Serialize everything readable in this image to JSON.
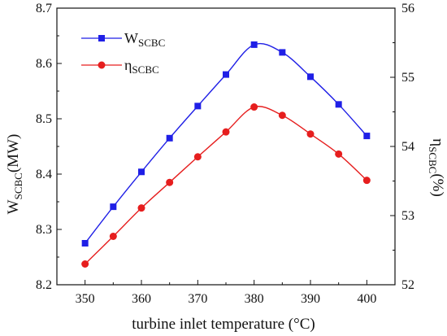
{
  "chart_data": {
    "type": "line",
    "x": [
      350,
      355,
      360,
      365,
      370,
      375,
      380,
      385,
      390,
      395,
      400
    ],
    "xlabel": "turbine inlet temperature (°C)",
    "xlim": [
      345,
      405
    ],
    "xticks": [
      "350",
      "360",
      "370",
      "380",
      "390",
      "400"
    ],
    "grid": false,
    "legend_position": "top-left",
    "series": [
      {
        "name": "W",
        "name_sub": "SCBC",
        "axis": "left",
        "marker": "square",
        "color": "#1f1fe6",
        "values": [
          8.275,
          8.341,
          8.404,
          8.465,
          8.523,
          8.58,
          8.634,
          8.62,
          8.576,
          8.526,
          8.469
        ]
      },
      {
        "name": "η",
        "name_sub": "SCBC",
        "axis": "right",
        "marker": "circle",
        "color": "#e61e1e",
        "values": [
          52.3,
          52.7,
          53.11,
          53.48,
          53.85,
          54.21,
          54.57,
          54.45,
          54.18,
          53.89,
          53.51
        ]
      }
    ],
    "y_left": {
      "label_main": "W",
      "label_sub": "SCBC",
      "label_unit": "(MW)",
      "ylim": [
        8.2,
        8.7
      ],
      "ticks": [
        "8.2",
        "8.3",
        "8.4",
        "8.5",
        "8.6",
        "8.7"
      ]
    },
    "y_right": {
      "label_main": "η",
      "label_sub": "SCBC",
      "label_unit": "(%)",
      "ylim": [
        52,
        56
      ],
      "ticks": [
        "52",
        "53",
        "54",
        "55",
        "56"
      ]
    }
  }
}
